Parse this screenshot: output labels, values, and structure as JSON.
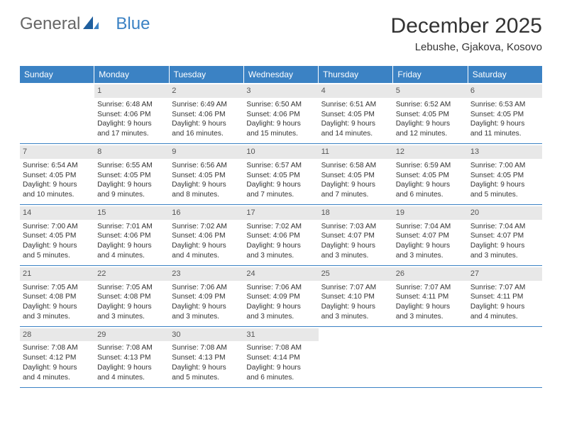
{
  "logo": {
    "text1": "General",
    "text2": "Blue"
  },
  "title": "December 2025",
  "location": "Lebushe, Gjakova, Kosovo",
  "colors": {
    "header_bg": "#3b82c4",
    "header_text": "#ffffff",
    "daynum_bg": "#e8e8e8",
    "border": "#3b82c4",
    "body_text": "#333333",
    "logo_gray": "#666666",
    "logo_blue": "#3b82c4"
  },
  "weekdays": [
    "Sunday",
    "Monday",
    "Tuesday",
    "Wednesday",
    "Thursday",
    "Friday",
    "Saturday"
  ],
  "weeks": [
    [
      null,
      {
        "n": "1",
        "sr": "Sunrise: 6:48 AM",
        "ss": "Sunset: 4:06 PM",
        "d1": "Daylight: 9 hours",
        "d2": "and 17 minutes."
      },
      {
        "n": "2",
        "sr": "Sunrise: 6:49 AM",
        "ss": "Sunset: 4:06 PM",
        "d1": "Daylight: 9 hours",
        "d2": "and 16 minutes."
      },
      {
        "n": "3",
        "sr": "Sunrise: 6:50 AM",
        "ss": "Sunset: 4:06 PM",
        "d1": "Daylight: 9 hours",
        "d2": "and 15 minutes."
      },
      {
        "n": "4",
        "sr": "Sunrise: 6:51 AM",
        "ss": "Sunset: 4:05 PM",
        "d1": "Daylight: 9 hours",
        "d2": "and 14 minutes."
      },
      {
        "n": "5",
        "sr": "Sunrise: 6:52 AM",
        "ss": "Sunset: 4:05 PM",
        "d1": "Daylight: 9 hours",
        "d2": "and 12 minutes."
      },
      {
        "n": "6",
        "sr": "Sunrise: 6:53 AM",
        "ss": "Sunset: 4:05 PM",
        "d1": "Daylight: 9 hours",
        "d2": "and 11 minutes."
      }
    ],
    [
      {
        "n": "7",
        "sr": "Sunrise: 6:54 AM",
        "ss": "Sunset: 4:05 PM",
        "d1": "Daylight: 9 hours",
        "d2": "and 10 minutes."
      },
      {
        "n": "8",
        "sr": "Sunrise: 6:55 AM",
        "ss": "Sunset: 4:05 PM",
        "d1": "Daylight: 9 hours",
        "d2": "and 9 minutes."
      },
      {
        "n": "9",
        "sr": "Sunrise: 6:56 AM",
        "ss": "Sunset: 4:05 PM",
        "d1": "Daylight: 9 hours",
        "d2": "and 8 minutes."
      },
      {
        "n": "10",
        "sr": "Sunrise: 6:57 AM",
        "ss": "Sunset: 4:05 PM",
        "d1": "Daylight: 9 hours",
        "d2": "and 7 minutes."
      },
      {
        "n": "11",
        "sr": "Sunrise: 6:58 AM",
        "ss": "Sunset: 4:05 PM",
        "d1": "Daylight: 9 hours",
        "d2": "and 7 minutes."
      },
      {
        "n": "12",
        "sr": "Sunrise: 6:59 AM",
        "ss": "Sunset: 4:05 PM",
        "d1": "Daylight: 9 hours",
        "d2": "and 6 minutes."
      },
      {
        "n": "13",
        "sr": "Sunrise: 7:00 AM",
        "ss": "Sunset: 4:05 PM",
        "d1": "Daylight: 9 hours",
        "d2": "and 5 minutes."
      }
    ],
    [
      {
        "n": "14",
        "sr": "Sunrise: 7:00 AM",
        "ss": "Sunset: 4:05 PM",
        "d1": "Daylight: 9 hours",
        "d2": "and 5 minutes."
      },
      {
        "n": "15",
        "sr": "Sunrise: 7:01 AM",
        "ss": "Sunset: 4:06 PM",
        "d1": "Daylight: 9 hours",
        "d2": "and 4 minutes."
      },
      {
        "n": "16",
        "sr": "Sunrise: 7:02 AM",
        "ss": "Sunset: 4:06 PM",
        "d1": "Daylight: 9 hours",
        "d2": "and 4 minutes."
      },
      {
        "n": "17",
        "sr": "Sunrise: 7:02 AM",
        "ss": "Sunset: 4:06 PM",
        "d1": "Daylight: 9 hours",
        "d2": "and 3 minutes."
      },
      {
        "n": "18",
        "sr": "Sunrise: 7:03 AM",
        "ss": "Sunset: 4:07 PM",
        "d1": "Daylight: 9 hours",
        "d2": "and 3 minutes."
      },
      {
        "n": "19",
        "sr": "Sunrise: 7:04 AM",
        "ss": "Sunset: 4:07 PM",
        "d1": "Daylight: 9 hours",
        "d2": "and 3 minutes."
      },
      {
        "n": "20",
        "sr": "Sunrise: 7:04 AM",
        "ss": "Sunset: 4:07 PM",
        "d1": "Daylight: 9 hours",
        "d2": "and 3 minutes."
      }
    ],
    [
      {
        "n": "21",
        "sr": "Sunrise: 7:05 AM",
        "ss": "Sunset: 4:08 PM",
        "d1": "Daylight: 9 hours",
        "d2": "and 3 minutes."
      },
      {
        "n": "22",
        "sr": "Sunrise: 7:05 AM",
        "ss": "Sunset: 4:08 PM",
        "d1": "Daylight: 9 hours",
        "d2": "and 3 minutes."
      },
      {
        "n": "23",
        "sr": "Sunrise: 7:06 AM",
        "ss": "Sunset: 4:09 PM",
        "d1": "Daylight: 9 hours",
        "d2": "and 3 minutes."
      },
      {
        "n": "24",
        "sr": "Sunrise: 7:06 AM",
        "ss": "Sunset: 4:09 PM",
        "d1": "Daylight: 9 hours",
        "d2": "and 3 minutes."
      },
      {
        "n": "25",
        "sr": "Sunrise: 7:07 AM",
        "ss": "Sunset: 4:10 PM",
        "d1": "Daylight: 9 hours",
        "d2": "and 3 minutes."
      },
      {
        "n": "26",
        "sr": "Sunrise: 7:07 AM",
        "ss": "Sunset: 4:11 PM",
        "d1": "Daylight: 9 hours",
        "d2": "and 3 minutes."
      },
      {
        "n": "27",
        "sr": "Sunrise: 7:07 AM",
        "ss": "Sunset: 4:11 PM",
        "d1": "Daylight: 9 hours",
        "d2": "and 4 minutes."
      }
    ],
    [
      {
        "n": "28",
        "sr": "Sunrise: 7:08 AM",
        "ss": "Sunset: 4:12 PM",
        "d1": "Daylight: 9 hours",
        "d2": "and 4 minutes."
      },
      {
        "n": "29",
        "sr": "Sunrise: 7:08 AM",
        "ss": "Sunset: 4:13 PM",
        "d1": "Daylight: 9 hours",
        "d2": "and 4 minutes."
      },
      {
        "n": "30",
        "sr": "Sunrise: 7:08 AM",
        "ss": "Sunset: 4:13 PM",
        "d1": "Daylight: 9 hours",
        "d2": "and 5 minutes."
      },
      {
        "n": "31",
        "sr": "Sunrise: 7:08 AM",
        "ss": "Sunset: 4:14 PM",
        "d1": "Daylight: 9 hours",
        "d2": "and 6 minutes."
      },
      null,
      null,
      null
    ]
  ]
}
